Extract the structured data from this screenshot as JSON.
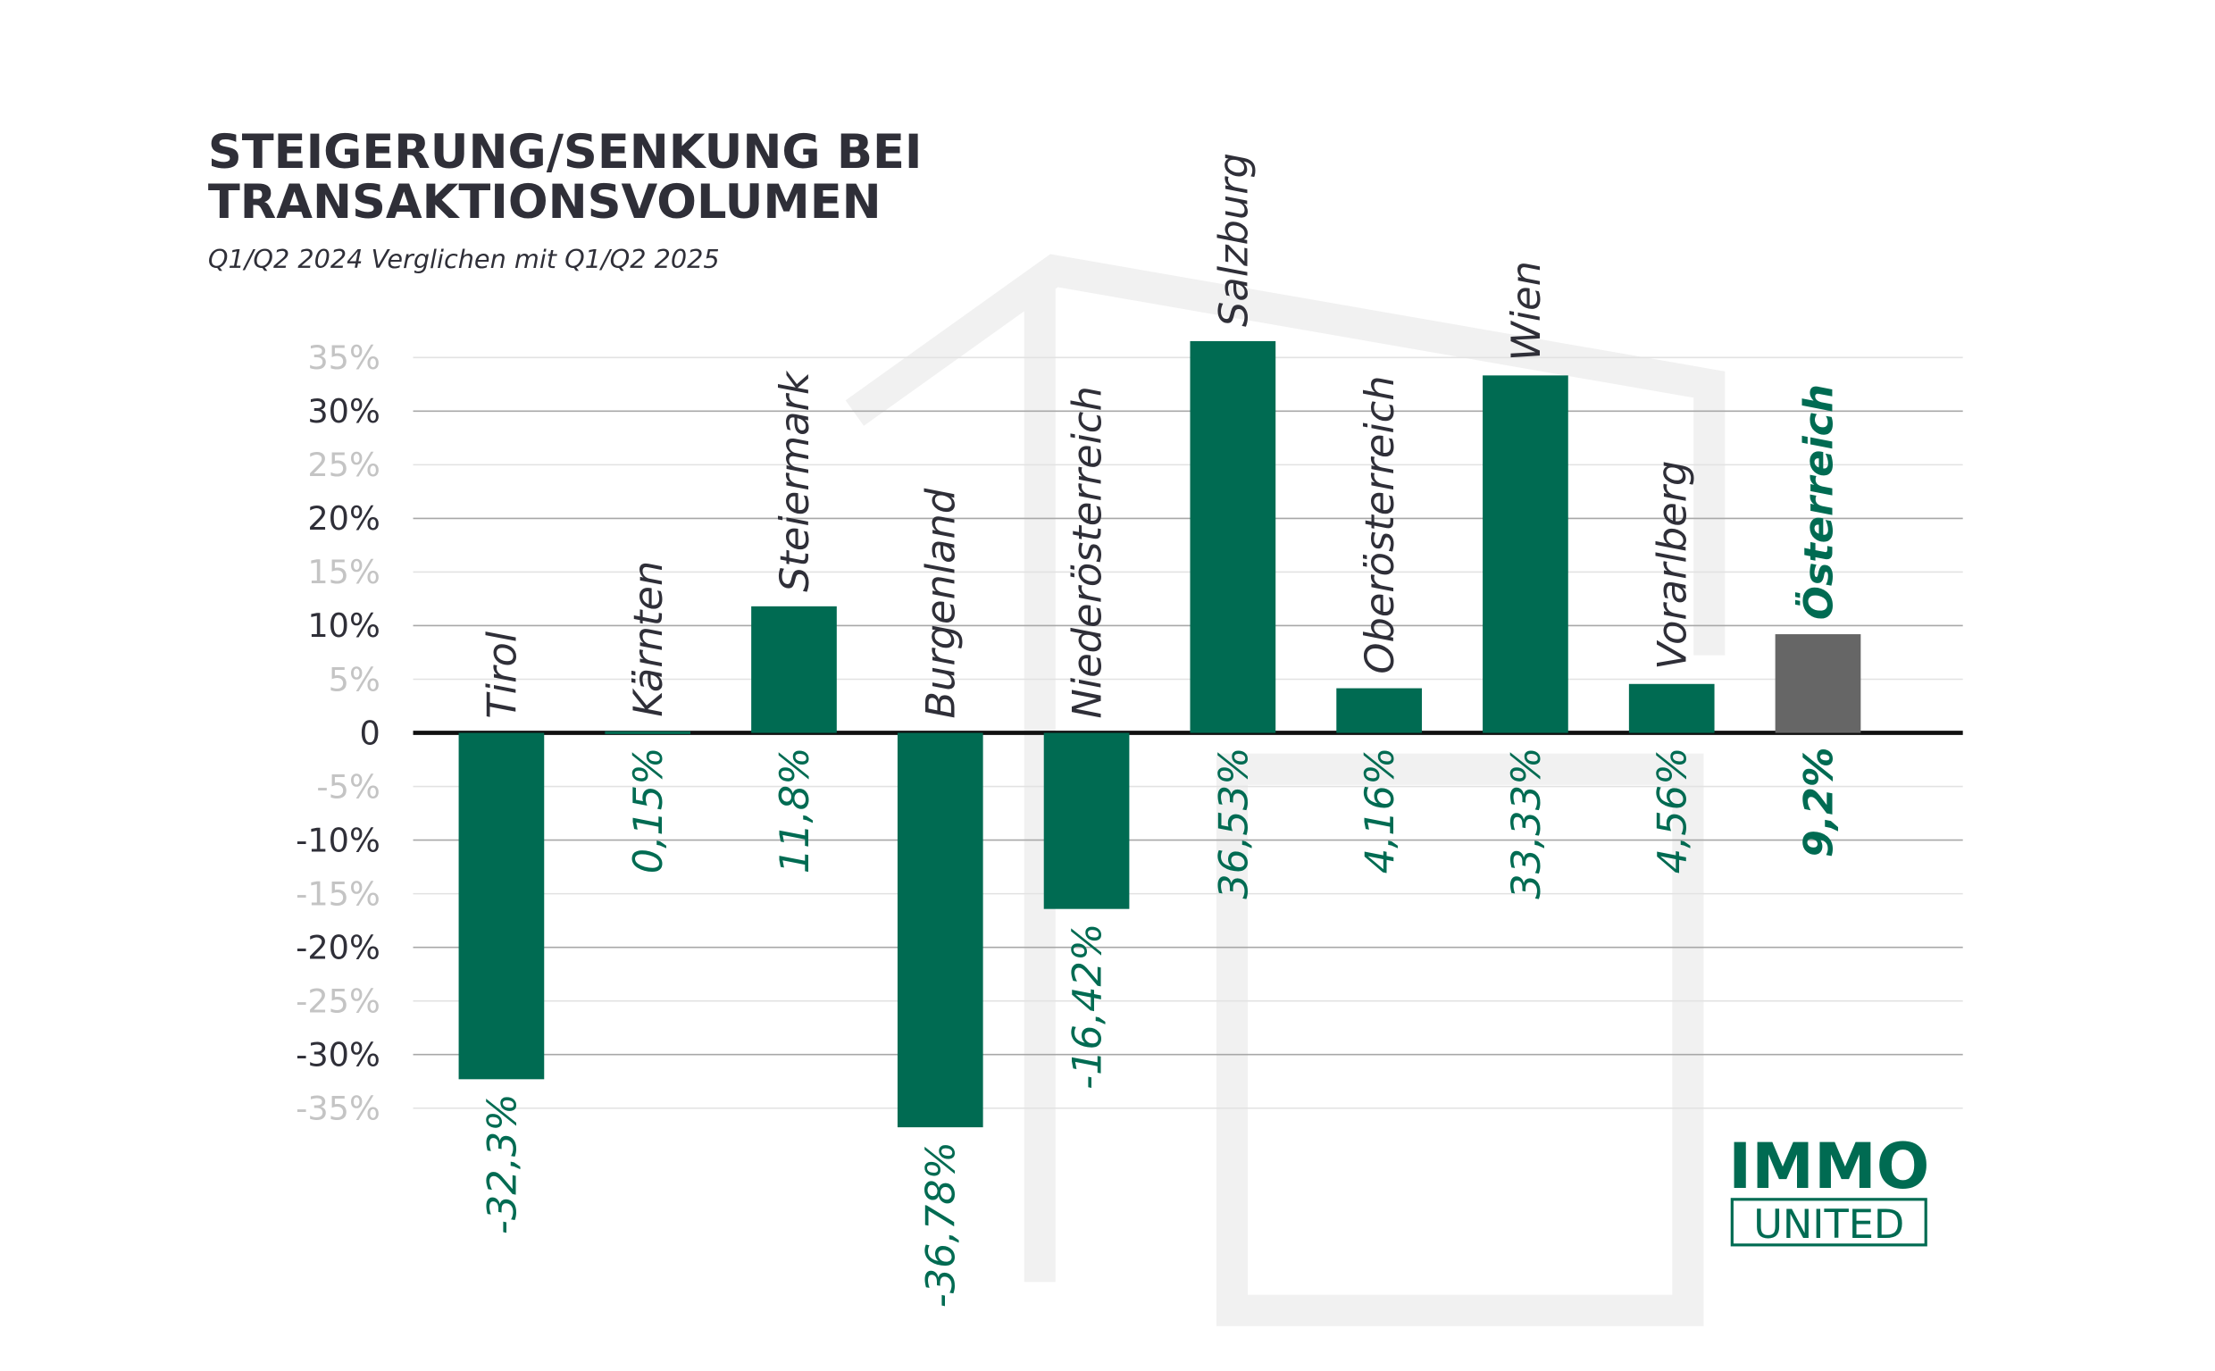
{
  "chart_data": {
    "type": "bar",
    "title": [
      "STEIGERUNG/SENKUNG BEI",
      "TRANSAKTIONSVOLUMEN"
    ],
    "subtitle": "Q1/Q2 2024 Verglichen mit Q1/Q2 2025",
    "categories": [
      "Tirol",
      "Kärnten",
      "Steiermark",
      "Burgenland",
      "Niederösterreich",
      "Salzburg",
      "Oberösterreich",
      "Wien",
      "Vorarlberg",
      "Österreich"
    ],
    "values": [
      -32.3,
      0.15,
      11.8,
      -36.78,
      -16.42,
      36.53,
      4.16,
      33.33,
      4.56,
      9.2
    ],
    "value_labels": [
      "-32,3%",
      "0,15%",
      "11,8%",
      "-36,78%",
      "-16,42%",
      "36,53%",
      "4,16%",
      "33,33%",
      "4,56%",
      "9,2%"
    ],
    "colors": [
      "#006b52",
      "#006b52",
      "#006b52",
      "#006b52",
      "#006b52",
      "#006b52",
      "#006b52",
      "#006b52",
      "#006b52",
      "#666666"
    ],
    "ylim": [
      -35,
      35
    ],
    "yticks": [
      {
        "value": 35,
        "label": "35%"
      },
      {
        "value": 30,
        "label": "30%"
      },
      {
        "value": 25,
        "label": "25%"
      },
      {
        "value": 20,
        "label": "20%"
      },
      {
        "value": 15,
        "label": "15%"
      },
      {
        "value": 10,
        "label": "10%"
      },
      {
        "value": 5,
        "label": "5%"
      },
      0,
      {
        "value": -5,
        "label": "-5%"
      },
      {
        "value": -10,
        "label": "-10%"
      },
      {
        "value": -15,
        "label": "-15%"
      },
      {
        "value": -20,
        "label": "-20%"
      },
      {
        "value": -25,
        "label": "-25%"
      },
      {
        "value": -30,
        "label": "-30%"
      },
      {
        "value": -35,
        "label": "-35%"
      }
    ],
    "grid": true,
    "logo": [
      "IMMO",
      "UNITED"
    ]
  }
}
